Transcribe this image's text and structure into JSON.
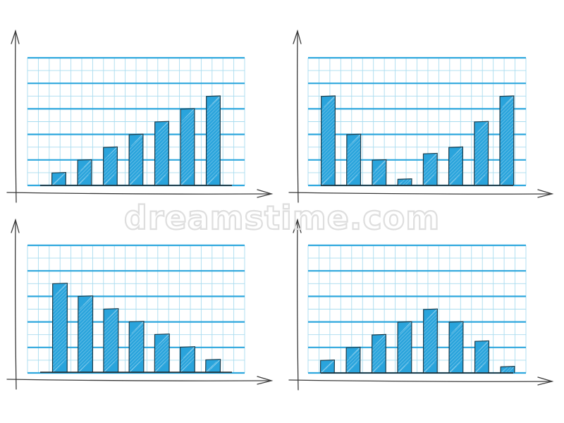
{
  "watermark": "dreamstime.com",
  "colors": {
    "bar": "#2aa4dc",
    "bar_outline": "#1b3b4a",
    "grid_major": "#2ea7dd",
    "grid_minor": "#a9dcef",
    "axis": "#3a3a3a"
  },
  "chart_data": [
    {
      "type": "bar",
      "position": "top-left",
      "categories": [
        "",
        "",
        "",
        "",
        "",
        "",
        ""
      ],
      "values": [
        1,
        2,
        3,
        4,
        5,
        6,
        7
      ],
      "ylim": [
        0,
        10
      ],
      "grid": true,
      "title": "",
      "xlabel": "",
      "ylabel": ""
    },
    {
      "type": "bar",
      "position": "top-right",
      "categories": [
        "",
        "",
        "",
        "",
        "",
        "",
        "",
        ""
      ],
      "values": [
        7,
        4,
        2,
        0.5,
        2.5,
        3,
        5,
        7
      ],
      "ylim": [
        0,
        10
      ],
      "grid": true,
      "title": "",
      "xlabel": "",
      "ylabel": ""
    },
    {
      "type": "bar",
      "position": "bottom-left",
      "categories": [
        "",
        "",
        "",
        "",
        "",
        "",
        ""
      ],
      "values": [
        7,
        6,
        5,
        4,
        3,
        2,
        1
      ],
      "ylim": [
        0,
        10
      ],
      "grid": true,
      "title": "",
      "xlabel": "",
      "ylabel": ""
    },
    {
      "type": "bar",
      "position": "bottom-right",
      "categories": [
        "",
        "",
        "",
        "",
        "",
        "",
        "",
        ""
      ],
      "values": [
        1,
        2,
        3,
        4,
        5,
        4,
        2.5,
        0.5
      ],
      "ylim": [
        0,
        10
      ],
      "grid": true,
      "title": "",
      "xlabel": "",
      "ylabel": ""
    }
  ]
}
